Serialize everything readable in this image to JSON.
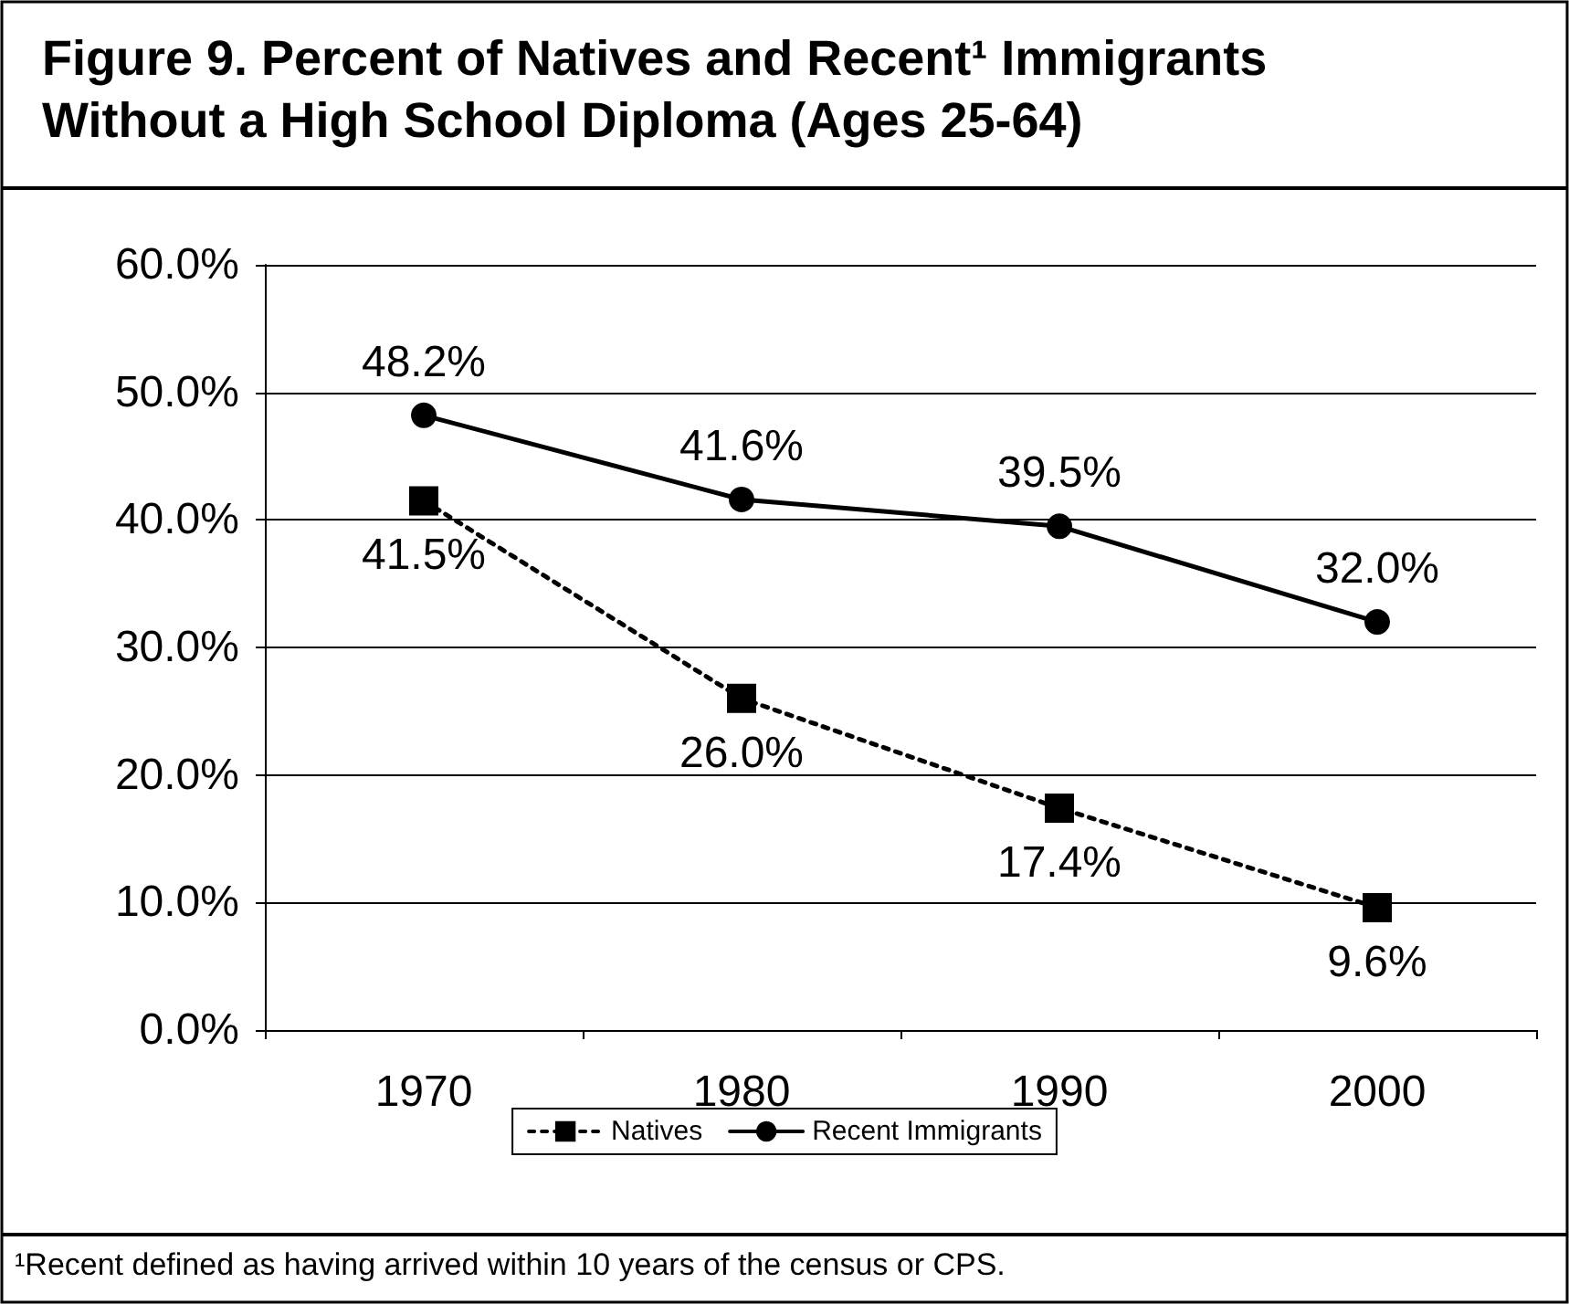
{
  "chart_data": {
    "type": "line",
    "title": "Figure 9. Percent of Natives and Recent¹ Immigrants Without a High School Diploma (Ages 25-64)",
    "categories": [
      "1970",
      "1980",
      "1990",
      "2000"
    ],
    "series": [
      {
        "name": "Natives",
        "color": "#000000",
        "marker": "square",
        "line_style": "dotted",
        "values": [
          41.5,
          26.0,
          17.4,
          9.6
        ],
        "value_labels": [
          "41.5%",
          "26.0%",
          "17.4%",
          "9.6%"
        ]
      },
      {
        "name": "Recent Immigrants",
        "color": "#000000",
        "marker": "circle",
        "line_style": "solid",
        "values": [
          48.2,
          41.6,
          39.5,
          32.0
        ],
        "value_labels": [
          "48.2%",
          "41.6%",
          "39.5%",
          "32.0%"
        ]
      }
    ],
    "ylim": [
      0,
      60
    ],
    "yticks": [
      {
        "value": 0,
        "label": "0.0%"
      },
      {
        "value": 10,
        "label": "10.0%"
      },
      {
        "value": 20,
        "label": "20.0%"
      },
      {
        "value": 30,
        "label": "30.0%"
      },
      {
        "value": 40,
        "label": "40.0%"
      },
      {
        "value": 50,
        "label": "50.0%"
      },
      {
        "value": 60,
        "label": "60.0%"
      }
    ],
    "grid": "y",
    "legend": "bottom",
    "annotations": [
      "¹Recent defined as having arrived within 10 years of the census or CPS."
    ]
  }
}
